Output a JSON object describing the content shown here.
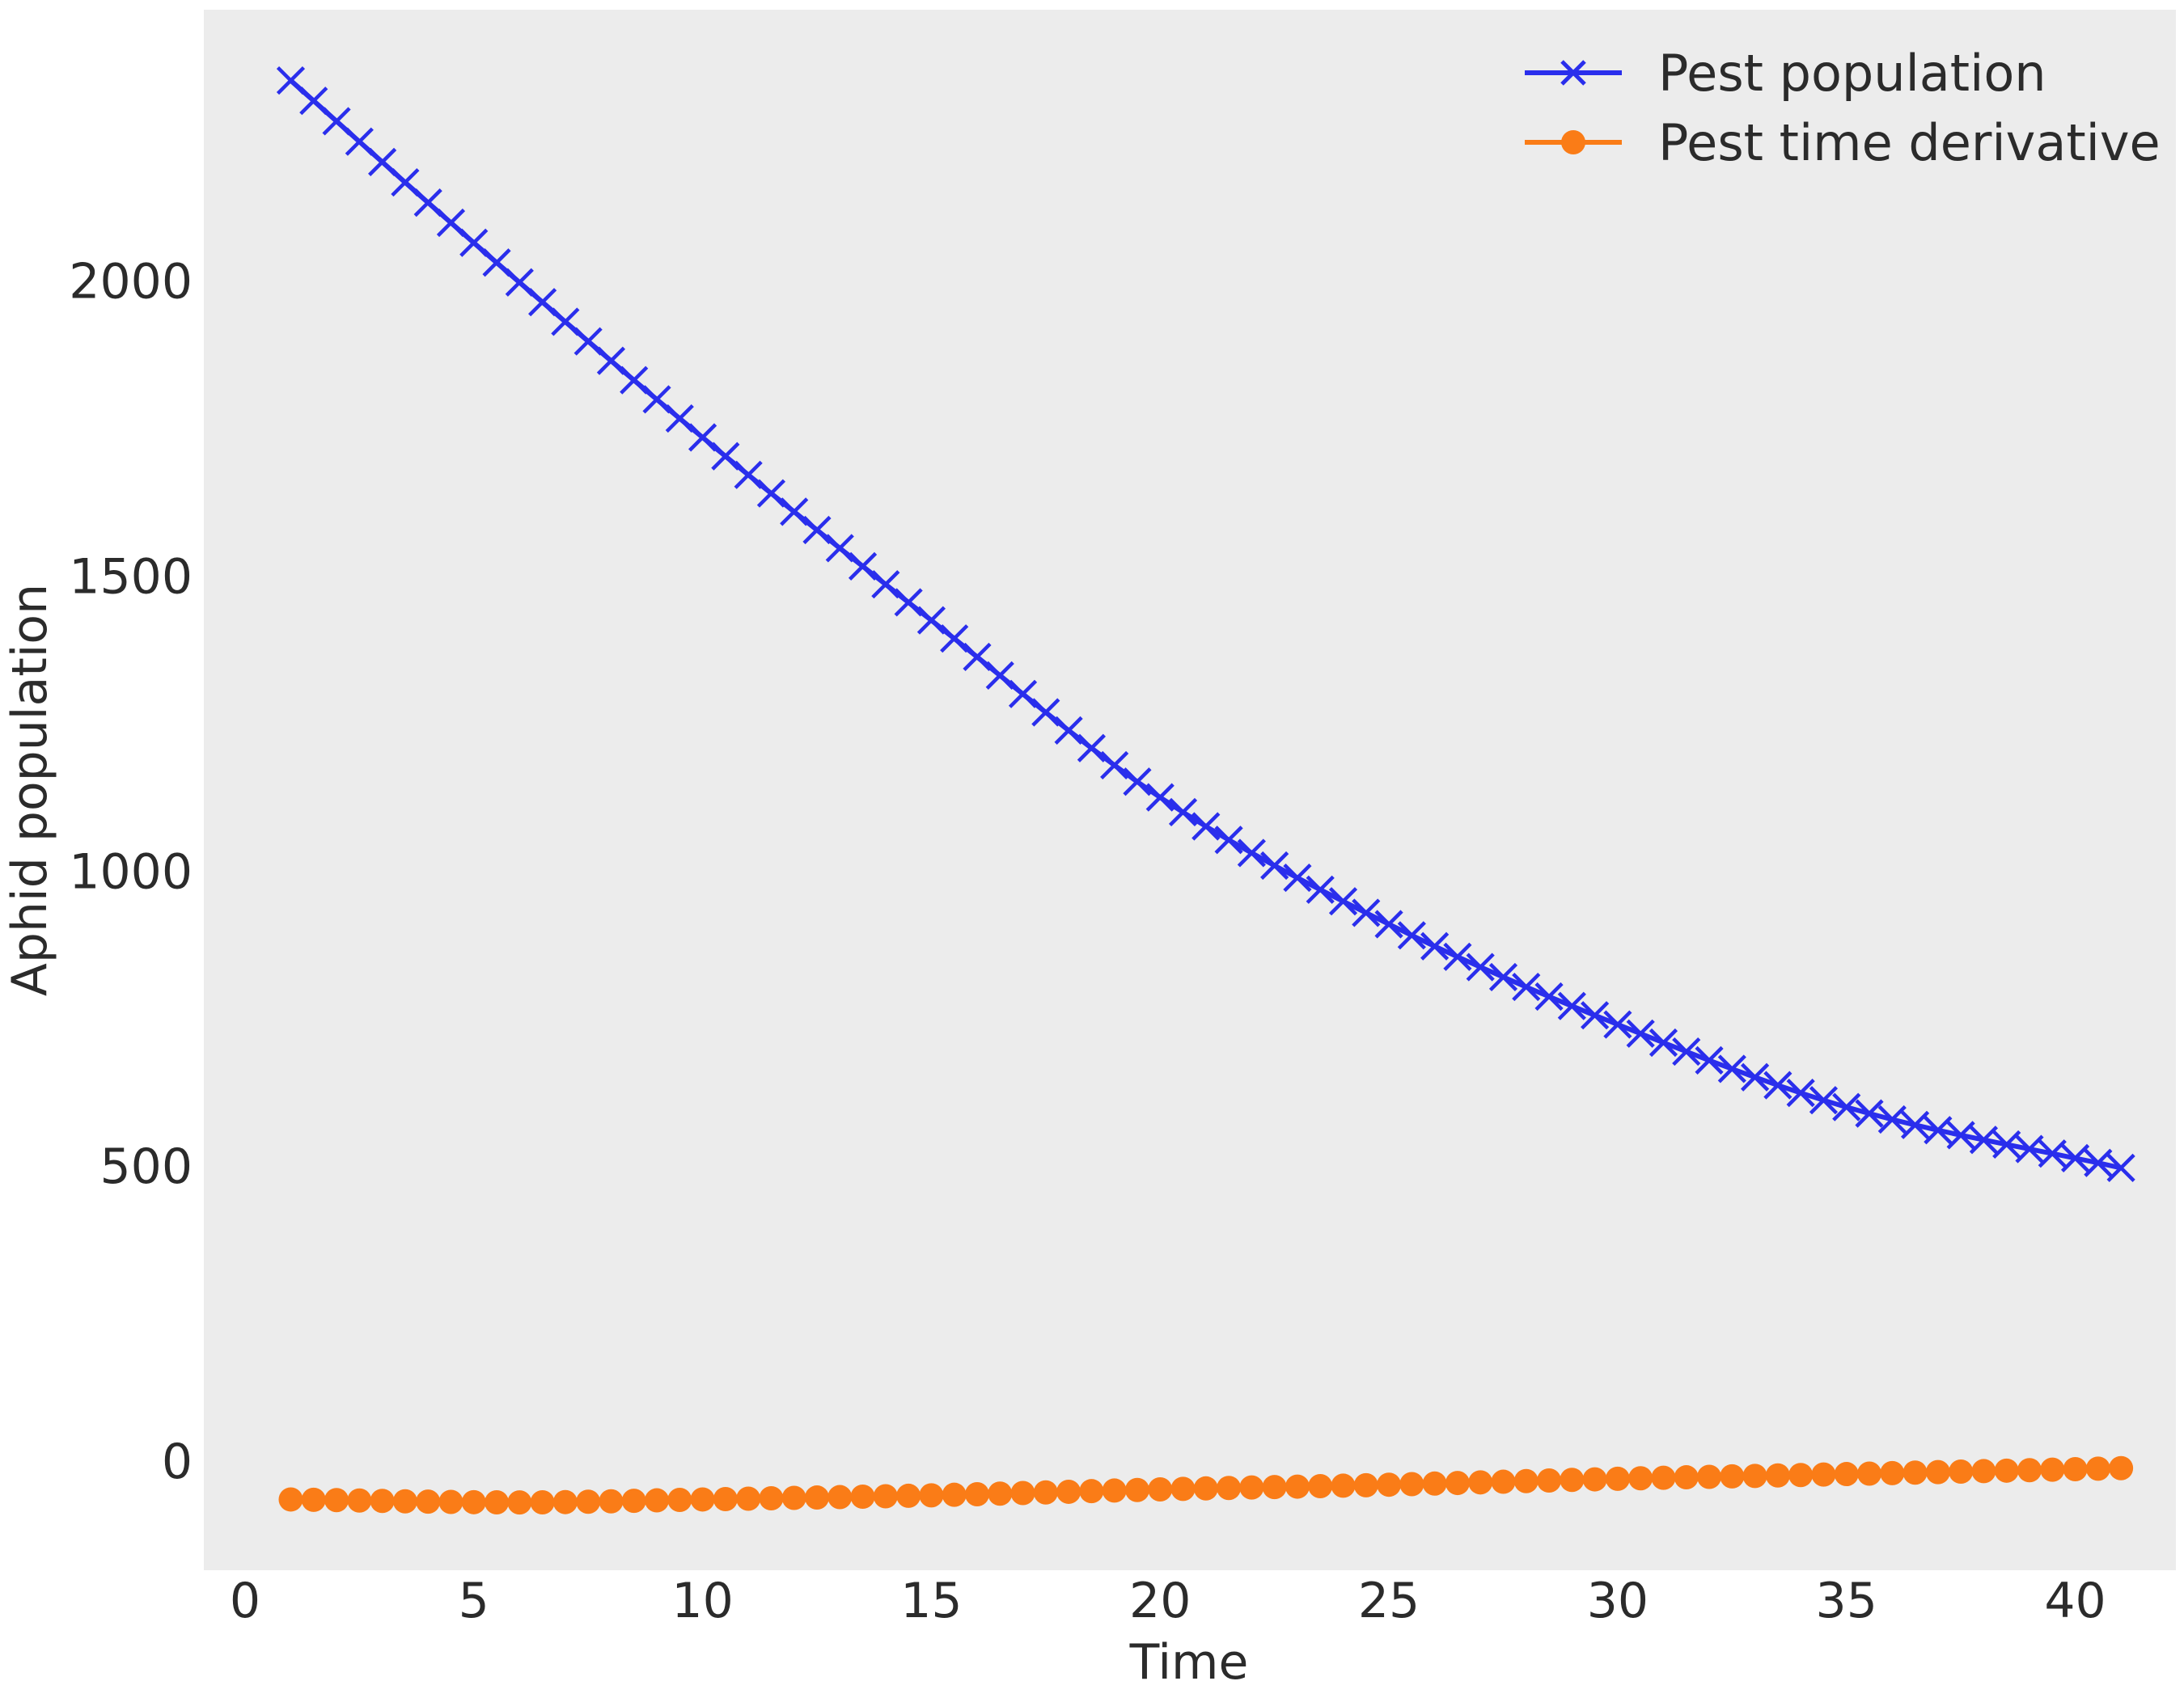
{
  "chart_data": {
    "type": "line",
    "xlabel": "Time",
    "ylabel": "Aphid population",
    "xlim": [
      -0.9,
      42.2
    ],
    "ylim": [
      -185,
      2460
    ],
    "xticks": [
      0,
      5,
      10,
      15,
      20,
      25,
      30,
      35,
      40
    ],
    "yticks": [
      0,
      500,
      1000,
      1500,
      2000
    ],
    "grid": false,
    "legend_position": "top-right",
    "background": "#ececec",
    "series": [
      {
        "name": "Pest population",
        "color": "#2a2eec",
        "marker": "x",
        "x_start": 1,
        "x_end": 41,
        "n_points": 81,
        "x_anchor": [
          1,
          5,
          10,
          15,
          20,
          25,
          30,
          35,
          41
        ],
        "y_anchor": [
          2340,
          2065,
          1735,
          1425,
          1125,
          910,
          740,
          600,
          497
        ]
      },
      {
        "name": "Pest time derivative",
        "color": "#fa7c17",
        "marker": "o",
        "x_start": 1,
        "x_end": 41,
        "n_points": 81,
        "x_anchor": [
          1,
          6,
          10,
          15,
          20,
          25,
          30,
          35,
          41
        ],
        "y_anchor": [
          -65,
          -70,
          -65,
          -58,
          -48,
          -40,
          -30,
          -22,
          -12
        ]
      }
    ]
  }
}
